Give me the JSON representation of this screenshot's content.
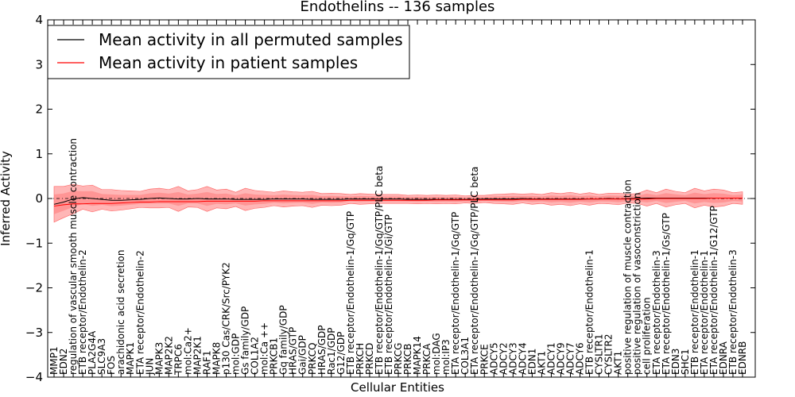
{
  "chart_data": {
    "type": "line",
    "title": "Endothelins -- 136 samples",
    "xlabel": "Cellular Entities",
    "ylabel": "Inferred Activity",
    "ylim": [
      -4,
      4
    ],
    "yticks": [
      "−4",
      "−3",
      "−2",
      "−1",
      "0",
      "1",
      "2",
      "3",
      "4"
    ],
    "legend": {
      "position": "top-left",
      "entries": [
        {
          "label": "Mean activity in all permuted samples",
          "color": "#000000"
        },
        {
          "label": "Mean activity in patient samples",
          "color": "#ff0000"
        }
      ]
    },
    "categories": [
      "MMP1",
      "EDN2",
      "regulation of vascular smooth muscle contraction",
      "ETB receptor/Endothelin-2",
      "PLA2G4A",
      "SLC9A3",
      "FOS",
      "arachidonic acid secretion",
      "MAPK1",
      "ETA receptor/Endothelin-2",
      "JUN",
      "MAPK3",
      "MAP2K2",
      "TRPC6",
      "mol:Ca2+",
      "MAP2K1",
      "RAF1",
      "MAPK8",
      "p130 Cas/CRK/Src/PYK2",
      "mol:GDP",
      "Gs family/GDP",
      "COL1A2",
      "mol:Ca ++",
      "PRKCB1",
      "Gq family/GDP",
      "HRAS/GTP",
      "Gai/GDP",
      "PRKCQ",
      "HRAS/GDP",
      "Rac1/GDP",
      "G12/GDP",
      "ETB receptor/Endothelin-1/Gq/GTP",
      "PRKCH",
      "PRKCD",
      "ETB receptor/Endothelin-1/Gq/GTP/PLC beta",
      "ETB receptor/Endothelin-1/Gi/GTP",
      "PRKCG",
      "PRKCB",
      "MAPK14",
      "PRKCA",
      "mol:DAG",
      "mol:IP3",
      "ETA receptor/Endothelin-1/Gq/GTP",
      "COL3A1",
      "ETA receptor/Endothelin-1/Gq/GTP/PLC beta",
      "PRKCE",
      "ADCY5",
      "ADCY2",
      "ADCY3",
      "ADCY4",
      "EDN1",
      "AKT1",
      "ADCY1",
      "ADCY9",
      "ADCY7",
      "ADCY6",
      "ETB receptor/Endothelin-1",
      "CYSLTR1",
      "CYSLTR2",
      "AKT1",
      "positive regulation of muscle contraction",
      "positive regulation of vasoconstriction",
      "cell proliferation",
      "ETA receptor/Endothelin-3",
      "ETA receptor/Endothelin-1/Gs/GTP",
      "EDN3",
      "SHC1",
      "ETB receptor/Endothelin-1",
      "ETA receptor/Endothelin-1",
      "ETA receptor/Endothelin-1/G12/GTP",
      "EDNRA",
      "ETB receptor/Endothelin-3",
      "EDNRB"
    ],
    "permuted_mean": [
      -0.13,
      -0.08,
      -0.01,
      0.02,
      0.0,
      -0.02,
      -0.04,
      -0.04,
      -0.03,
      -0.02,
      0.0,
      0.01,
      0.0,
      -0.01,
      -0.01,
      0.0,
      -0.01,
      -0.01,
      -0.01,
      -0.02,
      -0.02,
      -0.02,
      -0.02,
      -0.01,
      -0.01,
      -0.01,
      -0.01,
      -0.02,
      -0.02,
      -0.02,
      -0.02,
      -0.01,
      -0.01,
      -0.01,
      -0.01,
      -0.01,
      -0.01,
      -0.02,
      -0.02,
      -0.02,
      -0.02,
      -0.02,
      -0.02,
      -0.02,
      -0.02,
      -0.01,
      -0.01,
      -0.01,
      -0.01,
      0.0,
      -0.01,
      -0.01,
      -0.01,
      -0.01,
      -0.01,
      -0.01,
      -0.01,
      -0.01,
      0.0,
      -0.01,
      0.0,
      0.0,
      0.01,
      0.01,
      0.01,
      0.01,
      0.01,
      0.01,
      0.01,
      0.01,
      0.01,
      0.01,
      0.01
    ],
    "patient_mean": [
      -0.17,
      -0.14,
      -0.12,
      -0.12,
      -0.11,
      -0.11,
      -0.11,
      -0.1,
      -0.09,
      -0.08,
      -0.08,
      -0.07,
      -0.07,
      -0.07,
      -0.07,
      -0.07,
      -0.06,
      -0.06,
      -0.06,
      -0.06,
      -0.06,
      -0.06,
      -0.05,
      -0.05,
      -0.05,
      -0.05,
      -0.05,
      -0.05,
      -0.05,
      -0.05,
      -0.05,
      -0.04,
      -0.04,
      -0.04,
      -0.04,
      -0.04,
      -0.04,
      -0.04,
      -0.04,
      -0.04,
      -0.03,
      -0.03,
      -0.03,
      -0.03,
      -0.03,
      -0.03,
      -0.03,
      -0.03,
      -0.03,
      -0.02,
      -0.02,
      -0.02,
      -0.02,
      -0.02,
      -0.02,
      -0.02,
      -0.01,
      -0.01,
      -0.01,
      -0.01,
      -0.01,
      -0.01,
      -0.01,
      0.0,
      0.0,
      0.0,
      0.0,
      0.0,
      0.0,
      0.01,
      0.01,
      0.01,
      0.01
    ],
    "band_halfwidth": [
      0.4,
      0.35,
      0.33,
      0.26,
      0.3,
      0.22,
      0.24,
      0.22,
      0.2,
      0.18,
      0.21,
      0.22,
      0.2,
      0.28,
      0.18,
      0.2,
      0.28,
      0.2,
      0.22,
      0.16,
      0.25,
      0.2,
      0.18,
      0.15,
      0.18,
      0.16,
      0.15,
      0.18,
      0.13,
      0.14,
      0.13,
      0.1,
      0.12,
      0.11,
      0.1,
      0.1,
      0.1,
      0.09,
      0.1,
      0.09,
      0.1,
      0.09,
      0.1,
      0.08,
      0.09,
      0.08,
      0.1,
      0.11,
      0.12,
      0.1,
      0.12,
      0.1,
      0.14,
      0.12,
      0.15,
      0.11,
      0.14,
      0.1,
      0.12,
      0.13,
      0.1,
      0.11,
      0.18,
      0.12,
      0.2,
      0.15,
      0.12,
      0.22,
      0.16,
      0.2,
      0.18,
      0.12,
      0.14
    ]
  }
}
